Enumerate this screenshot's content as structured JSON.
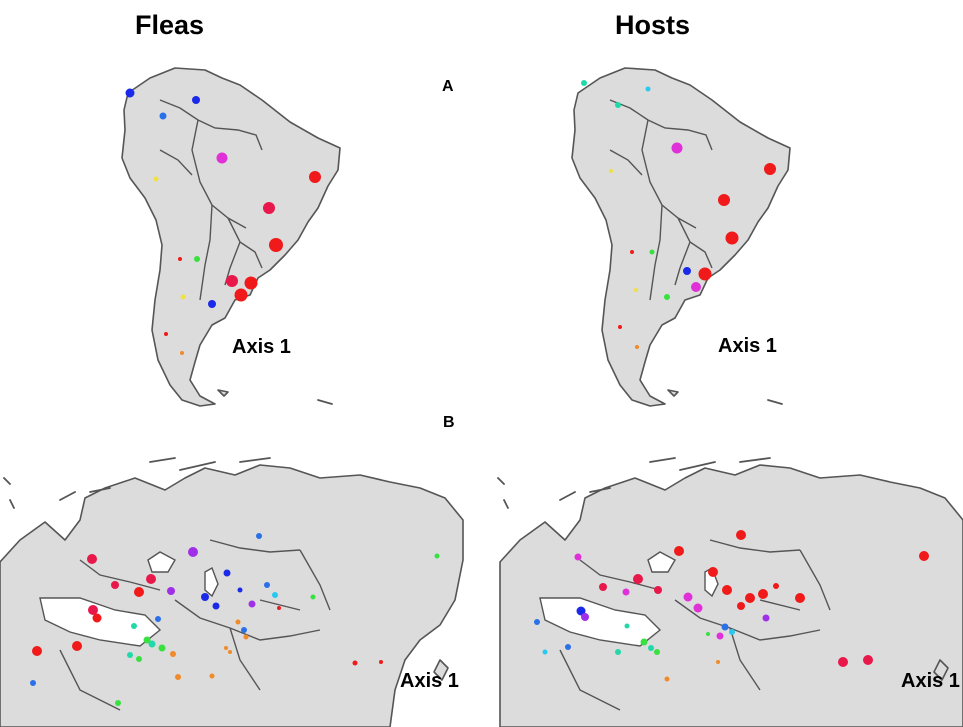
{
  "columns": {
    "left": "Fleas",
    "right": "Hosts"
  },
  "panels": {
    "a": "A",
    "b": "B"
  },
  "axis_labels": {
    "fleas_sa": "Axis 1",
    "hosts_sa": "Axis 1",
    "fleas_eu": "Axis 1",
    "hosts_eu": "Axis 1"
  },
  "colors": {
    "red": "#f01a1a",
    "crimson": "#e8184a",
    "magenta": "#e030d8",
    "purple": "#a030e8",
    "blue": "#1a2ae8",
    "mid_blue": "#2a70e8",
    "cyan": "#28c8f0",
    "teal": "#20d8a8",
    "green": "#38e040",
    "yellow": "#f0e040",
    "orange": "#f08a2a",
    "land": "#dcdcdc",
    "outline": "#555555"
  }
}
